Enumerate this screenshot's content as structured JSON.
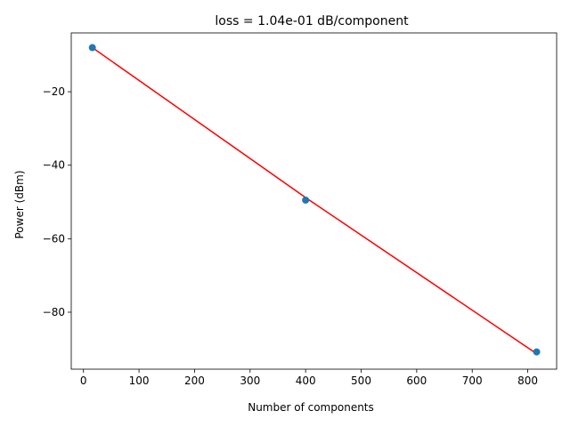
{
  "chart_data": {
    "type": "scatter",
    "title": "loss = 1.04e-01 dB/component",
    "xlabel": "Number of components",
    "ylabel": "Power (dBm)",
    "xlim": [
      -22,
      852
    ],
    "ylim": [
      -95.5,
      -4
    ],
    "xticks": [
      0,
      100,
      200,
      300,
      400,
      500,
      600,
      700,
      800
    ],
    "xtick_labels": [
      "0",
      "100",
      "200",
      "300",
      "400",
      "500",
      "600",
      "700",
      "800"
    ],
    "yticks": [
      -80,
      -60,
      -40,
      -20
    ],
    "ytick_labels": [
      "−80",
      "−60",
      "−40",
      "−20"
    ],
    "grid": false,
    "series": [
      {
        "kind": "scatter",
        "x": [
          16,
          400,
          816
        ],
        "y": [
          -8.0,
          -49.5,
          -90.8
        ]
      },
      {
        "kind": "line",
        "x": [
          16,
          400,
          816
        ],
        "y": [
          -8.0,
          -48.8,
          -91.3
        ]
      }
    ],
    "colors": {
      "scatter": "#1f77b4",
      "fit_line": "#ff0000"
    }
  }
}
